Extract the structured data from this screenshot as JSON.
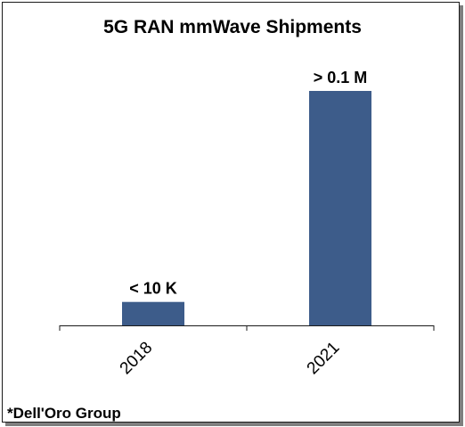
{
  "chart_data": {
    "type": "bar",
    "title": "5G RAN mmWave Shipments",
    "categories": [
      "2018",
      "2021"
    ],
    "values": [
      0.01,
      0.1
    ],
    "value_labels": [
      "< 10 K",
      "> 0.1 M"
    ],
    "unit": "M",
    "ylim": [
      0,
      0.11
    ],
    "grid": false,
    "legend": "none",
    "source_note": "*Dell'Oro Group",
    "bar_color": "#3d5c8a"
  }
}
